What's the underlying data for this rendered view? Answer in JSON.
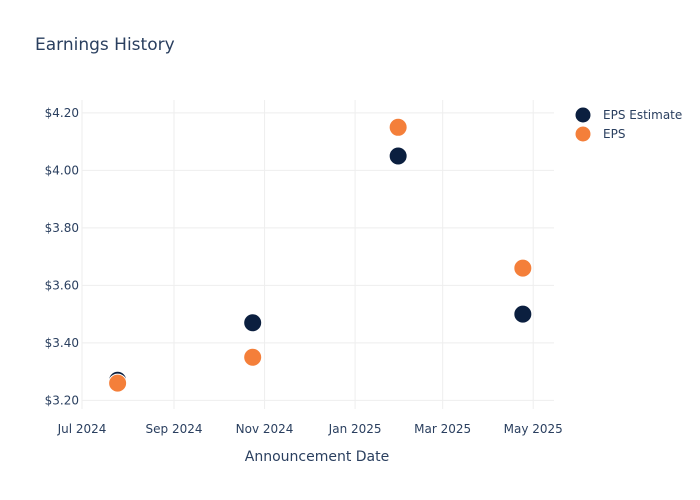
{
  "chart_data": {
    "type": "scatter",
    "title": "Earnings History",
    "xlabel": "Announcement Date",
    "ylabel": "",
    "x_ticks": [
      "Jul 2024",
      "Sep 2024",
      "Nov 2024",
      "Jan 2025",
      "Mar 2025",
      "May 2025"
    ],
    "y_ticks": [
      "$3.20",
      "$3.40",
      "$3.60",
      "$3.80",
      "$4.00",
      "$4.20"
    ],
    "xlim": [
      "2024-07-01",
      "2025-05-15"
    ],
    "ylim": [
      3.17,
      4.245
    ],
    "grid": true,
    "legend_position": "top-right",
    "series": [
      {
        "name": "EPS Estimate",
        "color": "#0b1f3f",
        "points": [
          {
            "x": "2024-07-25",
            "y": 3.27
          },
          {
            "x": "2024-10-24",
            "y": 3.47
          },
          {
            "x": "2025-01-30",
            "y": 4.05
          },
          {
            "x": "2025-04-24",
            "y": 3.5
          }
        ]
      },
      {
        "name": "EPS",
        "color": "#f47f3a",
        "points": [
          {
            "x": "2024-07-25",
            "y": 3.26
          },
          {
            "x": "2024-10-24",
            "y": 3.35
          },
          {
            "x": "2025-01-30",
            "y": 4.15
          },
          {
            "x": "2025-04-24",
            "y": 3.66
          }
        ]
      }
    ]
  }
}
